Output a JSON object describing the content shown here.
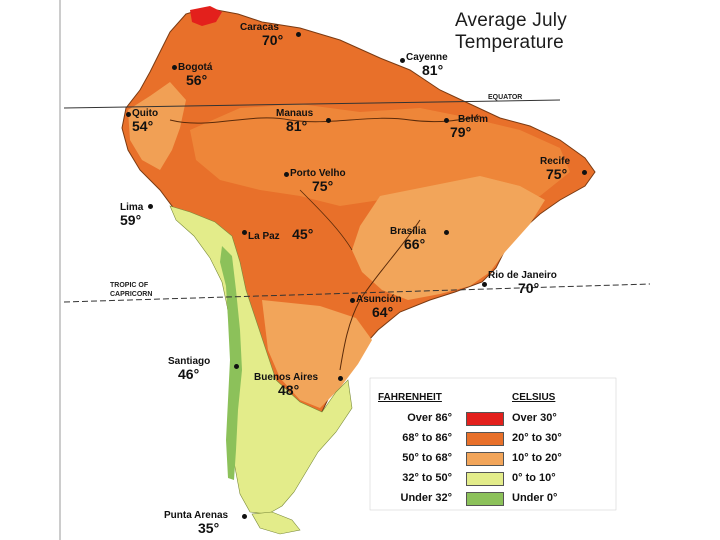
{
  "title": {
    "line1": "Average July",
    "line2": "Temperature"
  },
  "reference_lines": {
    "equator": "EQUATOR",
    "tropic_line1": "TROPIC OF",
    "tropic_line2": "CAPRICORN"
  },
  "cities": [
    {
      "id": "caracas",
      "name": "Caracas",
      "temp": "70°"
    },
    {
      "id": "bogota",
      "name": "Bogotá",
      "temp": "56°"
    },
    {
      "id": "cayenne",
      "name": "Cayenne",
      "temp": "81°"
    },
    {
      "id": "quito",
      "name": "Quito",
      "temp": "54°"
    },
    {
      "id": "manaus",
      "name": "Manaus",
      "temp": "81°"
    },
    {
      "id": "belem",
      "name": "Belém",
      "temp": "79°"
    },
    {
      "id": "recife",
      "name": "Recife",
      "temp": "75°"
    },
    {
      "id": "porto-velho",
      "name": "Porto Velho",
      "temp": "75°"
    },
    {
      "id": "lima",
      "name": "Lima",
      "temp": "59°"
    },
    {
      "id": "la-paz",
      "name": "La Paz",
      "temp": "45°"
    },
    {
      "id": "brasilia",
      "name": "Brasília",
      "temp": "66°"
    },
    {
      "id": "rio",
      "name": "Rio de Janeiro",
      "temp": "70°"
    },
    {
      "id": "asuncion",
      "name": "Asunción",
      "temp": "64°"
    },
    {
      "id": "santiago",
      "name": "Santiago",
      "temp": "46°"
    },
    {
      "id": "buenos-aires",
      "name": "Buenos Aires",
      "temp": "48°"
    },
    {
      "id": "punta-arenas",
      "name": "Punta Arenas",
      "temp": "35°"
    }
  ],
  "legend": {
    "fahrenheit_heading": "FAHRENHEIT",
    "celsius_heading": "CELSIUS",
    "rows": [
      {
        "fahrenheit": "Over 86°",
        "celsius": "Over 30°",
        "color": "#e3201c"
      },
      {
        "fahrenheit": "68° to 86°",
        "celsius": "20° to 30°",
        "color": "#e8702a"
      },
      {
        "fahrenheit": "50° to 68°",
        "celsius": "10° to 20°",
        "color": "#f2a55a"
      },
      {
        "fahrenheit": "32° to 50°",
        "celsius": "0° to 10°",
        "color": "#e3ec8a"
      },
      {
        "fahrenheit": "Under 32°",
        "celsius": "Under 0°",
        "color": "#8cc15a"
      }
    ]
  }
}
